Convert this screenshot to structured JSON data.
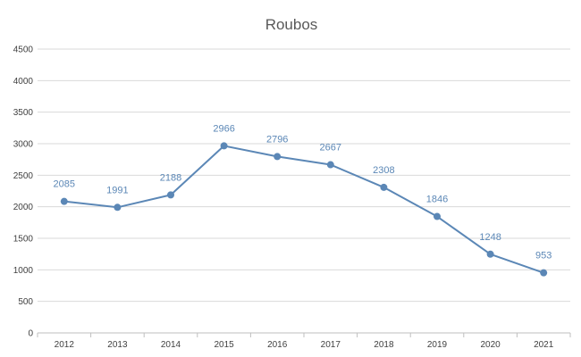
{
  "chart_data": {
    "type": "line",
    "title": "Roubos",
    "xlabel": "",
    "ylabel": "",
    "categories": [
      "2012",
      "2013",
      "2014",
      "2015",
      "2016",
      "2017",
      "2018",
      "2019",
      "2020",
      "2021"
    ],
    "values": [
      2085,
      1991,
      2188,
      2966,
      2796,
      2667,
      2308,
      1846,
      1248,
      953
    ],
    "data_labels": [
      "2085",
      "1991",
      "2188",
      "2966",
      "2796",
      "2667",
      "2308",
      "1846",
      "1248",
      "953"
    ],
    "yticks": [
      "0",
      "500",
      "1000",
      "1500",
      "2000",
      "2500",
      "3000",
      "3500",
      "4000",
      "4500"
    ],
    "ylim": [
      0,
      4500
    ],
    "grid": true,
    "legend": "none",
    "colors": {
      "series": "#5b87b6",
      "label": "#5b87b6"
    }
  }
}
